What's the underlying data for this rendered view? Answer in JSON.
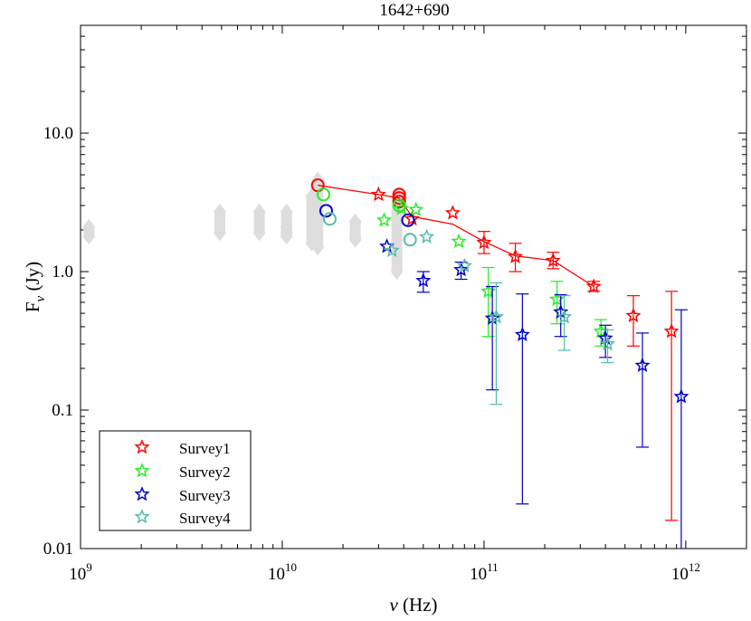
{
  "chart_data": {
    "type": "scatter",
    "title": "1642+690",
    "xlabel": "ν (Hz)",
    "ylabel": "F_ν (Jy)",
    "ylabel_main": "F",
    "ylabel_sub": "ν",
    "ylabel_unit": " (Jy)",
    "xlabel_symbol": "ν",
    "xlabel_unit": " (Hz)",
    "xscale": "log",
    "yscale": "log",
    "xlim": [
      1000000000.0,
      2000000000000.0
    ],
    "ylim": [
      0.01,
      60
    ],
    "x_ticks": [
      {
        "value": 1000000000.0,
        "base": "10",
        "exp": "9"
      },
      {
        "value": 10000000000.0,
        "base": "10",
        "exp": "10"
      },
      {
        "value": 100000000000.0,
        "base": "10",
        "exp": "11"
      },
      {
        "value": 1000000000000.0,
        "base": "10",
        "exp": "12"
      }
    ],
    "y_ticks": [
      {
        "value": 0.01,
        "label": "0.01"
      },
      {
        "value": 0.1,
        "label": "0.1"
      },
      {
        "value": 1,
        "label": "1.0"
      },
      {
        "value": 10,
        "label": "10.0"
      }
    ],
    "legend_position": "bottom-left",
    "colors": {
      "survey1": "#ff0000",
      "survey2": "#22ee22",
      "survey3": "#0000cc",
      "survey4": "#55bbaa",
      "archival": "#dddddd"
    },
    "archival": [
      {
        "x": 1100000000.0,
        "y": [
          1.8,
          2.1
        ]
      },
      {
        "x": 4900000000.0,
        "y": [
          1.9,
          2.7
        ]
      },
      {
        "x": 7700000000.0,
        "y": [
          1.9,
          2.7
        ]
      },
      {
        "x": 10500000000.0,
        "y": [
          1.8,
          2.7
        ]
      },
      {
        "x": 10500000000.0,
        "y": [
          1.9,
          2.1
        ]
      },
      {
        "x": 14000000000.0,
        "y": [
          1.6,
          3.5
        ]
      },
      {
        "x": 15000000000.0,
        "y": [
          1.5,
          4.6
        ]
      },
      {
        "x": 23000000000.0,
        "y": [
          1.7,
          2.3
        ]
      },
      {
        "x": 37000000000.0,
        "y": [
          1.0,
          3.5
        ]
      }
    ],
    "fit_line": {
      "x": [
        15000000000.0,
        30000000000.0,
        38000000000.0,
        44000000000.0,
        70000000000.0,
        100000000000.0,
        143000000000.0,
        220000000000.0,
        350000000000.0
      ],
      "y": [
        4.2,
        3.6,
        3.4,
        2.5,
        2.2,
        1.65,
        1.3,
        1.2,
        0.78
      ]
    },
    "series": [
      {
        "name": "Survey1",
        "color": "#ff0000",
        "circles": [
          {
            "x": 15000000000.0,
            "y": 4.2
          },
          {
            "x": 38000000000.0,
            "y": 3.6
          },
          {
            "x": 38000000000.0,
            "y": 3.4
          },
          {
            "x": 38000000000.0,
            "y": 3.2
          }
        ],
        "stars": [
          {
            "x": 30000000000.0,
            "y": 3.6
          },
          {
            "x": 44000000000.0,
            "y": 2.4
          },
          {
            "x": 70000000000.0,
            "y": 2.65
          },
          {
            "x": 100000000000.0,
            "y": 1.62,
            "err": [
              1.35,
              1.95
            ]
          },
          {
            "x": 143000000000.0,
            "y": 1.28,
            "err": [
              1.0,
              1.6
            ]
          },
          {
            "x": 220000000000.0,
            "y": 1.2,
            "err": [
              1.05,
              1.38
            ]
          },
          {
            "x": 350000000000.0,
            "y": 0.78,
            "err": [
              0.72,
              0.85
            ]
          },
          {
            "x": 550000000000.0,
            "y": 0.48,
            "err": [
              0.29,
              0.67
            ]
          },
          {
            "x": 850000000000.0,
            "y": 0.37,
            "err": [
              0.016,
              0.72
            ]
          }
        ]
      },
      {
        "name": "Survey2",
        "color": "#22ee22",
        "circles": [
          {
            "x": 16000000000.0,
            "y": 3.6
          },
          {
            "x": 38000000000.0,
            "y": 3.0
          }
        ],
        "stars": [
          {
            "x": 32000000000.0,
            "y": 2.35
          },
          {
            "x": 39000000000.0,
            "y": 2.85
          },
          {
            "x": 46000000000.0,
            "y": 2.8
          },
          {
            "x": 75000000000.0,
            "y": 1.65
          },
          {
            "x": 105000000000.0,
            "y": 0.72,
            "err": [
              0.34,
              1.07
            ]
          },
          {
            "x": 230000000000.0,
            "y": 0.63,
            "err": [
              0.42,
              0.85
            ]
          },
          {
            "x": 380000000000.0,
            "y": 0.37,
            "err": [
              0.29,
              0.45
            ]
          }
        ]
      },
      {
        "name": "Survey3",
        "color": "#0000cc",
        "circles": [
          {
            "x": 16500000000.0,
            "y": 2.75
          },
          {
            "x": 42000000000.0,
            "y": 2.35
          }
        ],
        "stars": [
          {
            "x": 33000000000.0,
            "y": 1.52
          },
          {
            "x": 50000000000.0,
            "y": 0.86,
            "err": [
              0.71,
              1.0
            ]
          },
          {
            "x": 77000000000.0,
            "y": 1.03,
            "err": [
              0.88,
              1.17
            ]
          },
          {
            "x": 110000000000.0,
            "y": 0.46,
            "err": [
              0.14,
              0.78
            ]
          },
          {
            "x": 155000000000.0,
            "y": 0.35,
            "err": [
              0.021,
              0.69
            ]
          },
          {
            "x": 240000000000.0,
            "y": 0.51,
            "err": [
              0.34,
              0.68
            ]
          },
          {
            "x": 400000000000.0,
            "y": 0.33,
            "err": [
              0.24,
              0.41
            ]
          },
          {
            "x": 610000000000.0,
            "y": 0.21,
            "err": [
              0.054,
              0.36
            ]
          },
          {
            "x": 950000000000.0,
            "y": 0.125,
            "err": [
              0.0095,
              0.53
            ]
          }
        ]
      },
      {
        "name": "Survey4",
        "color": "#55bbaa",
        "circles": [
          {
            "x": 17200000000.0,
            "y": 2.4
          },
          {
            "x": 43000000000.0,
            "y": 1.7
          }
        ],
        "stars": [
          {
            "x": 35000000000.0,
            "y": 1.42
          },
          {
            "x": 52000000000.0,
            "y": 1.78
          },
          {
            "x": 80000000000.0,
            "y": 1.1
          },
          {
            "x": 115000000000.0,
            "y": 0.47,
            "err": [
              0.11,
              0.83
            ]
          },
          {
            "x": 250000000000.0,
            "y": 0.47,
            "err": [
              0.27,
              0.67
            ]
          },
          {
            "x": 410000000000.0,
            "y": 0.3,
            "err": [
              0.22,
              0.38
            ]
          }
        ]
      }
    ]
  }
}
